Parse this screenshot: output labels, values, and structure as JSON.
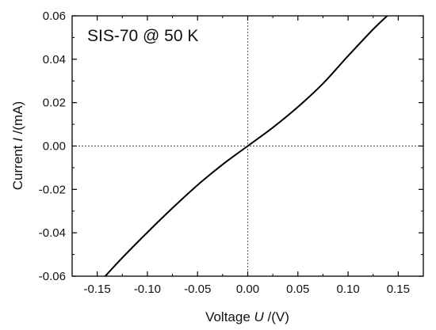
{
  "chart_data": {
    "type": "line",
    "annotation": "SIS-70 @ 50 K",
    "xlabel": {
      "prefix": "Voltage ",
      "symbol": "U",
      "suffix": " /(V)"
    },
    "ylabel": {
      "prefix": "Current ",
      "symbol": "I",
      "suffix": " /(mA)"
    },
    "xlim": [
      -0.175,
      0.175
    ],
    "ylim": [
      -0.06,
      0.06
    ],
    "xticks": [
      -0.15,
      -0.1,
      -0.05,
      0.0,
      0.05,
      0.1,
      0.15
    ],
    "xtick_labels": [
      "-0.15",
      "-0.10",
      "-0.05",
      "0.00",
      "0.05",
      "0.10",
      "0.15"
    ],
    "yticks": [
      -0.06,
      -0.04,
      -0.02,
      0.0,
      0.02,
      0.04,
      0.06
    ],
    "ytick_labels": [
      "-0.06",
      "-0.04",
      "-0.02",
      "0.00",
      "0.02",
      "0.04",
      "0.06"
    ],
    "reference_lines": {
      "x0": true,
      "y0": true,
      "style": "dotted"
    },
    "grid": false,
    "series": [
      {
        "color": "#000000",
        "x": [
          -0.142,
          -0.125,
          -0.1,
          -0.075,
          -0.05,
          -0.025,
          0.0,
          0.025,
          0.05,
          0.075,
          0.1,
          0.125,
          0.139
        ],
        "y": [
          -0.06,
          -0.0515,
          -0.0398,
          -0.0286,
          -0.018,
          -0.0085,
          0.0,
          0.0085,
          0.018,
          0.0288,
          0.0415,
          0.0538,
          0.06
        ]
      }
    ]
  }
}
